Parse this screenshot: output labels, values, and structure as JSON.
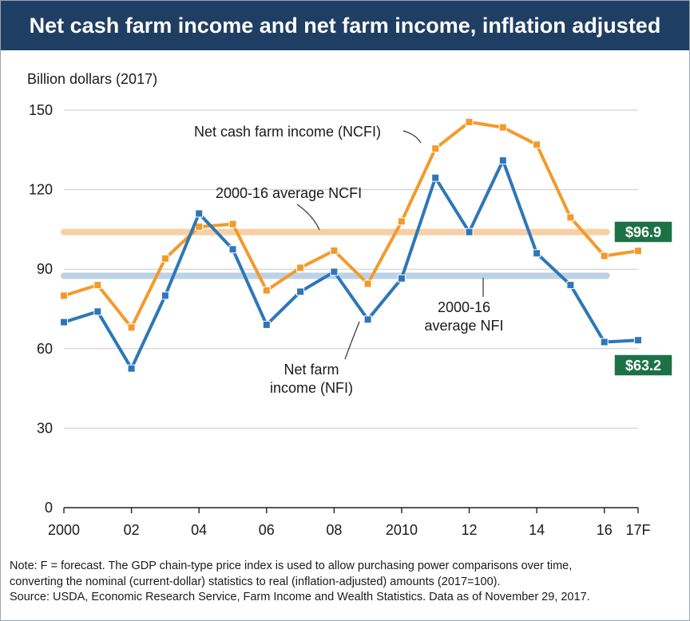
{
  "header": {
    "title": "Net cash farm income and net farm income, inflation adjusted"
  },
  "notes": {
    "line1": "Note: F = forecast. The GDP chain-type price index is used to allow purchasing power comparisons over time,",
    "line2": "converting the nominal (current-dollar) statistics to real (inflation-adjusted) amounts (2017=100).",
    "line3": "Source: USDA, Economic Research Service, Farm Income and Wealth Statistics. Data as of November 29, 2017."
  },
  "colors": {
    "title_bg": "#1f3e63",
    "ncfi": "#f39a2b",
    "nfi": "#2d77b8",
    "ncfi_avg": "#f8cfa6",
    "nfi_avg": "#bcd3e6",
    "badge": "#1d7147"
  },
  "chart_data": {
    "type": "line",
    "ylabel": "Billion dollars (2017)",
    "ylim": [
      0,
      150
    ],
    "yticks": [
      0,
      30,
      60,
      90,
      120,
      150
    ],
    "x": [
      2000,
      2001,
      2002,
      2003,
      2004,
      2005,
      2006,
      2007,
      2008,
      2009,
      2010,
      2011,
      2012,
      2013,
      2014,
      2015,
      2016,
      2017
    ],
    "xlim": [
      2000,
      2017
    ],
    "xticks": [
      {
        "x": 2000,
        "label": "2000"
      },
      {
        "x": 2002,
        "label": "02"
      },
      {
        "x": 2004,
        "label": "04"
      },
      {
        "x": 2006,
        "label": "06"
      },
      {
        "x": 2008,
        "label": "08"
      },
      {
        "x": 2010,
        "label": "2010"
      },
      {
        "x": 2012,
        "label": "12"
      },
      {
        "x": 2014,
        "label": "14"
      },
      {
        "x": 2016,
        "label": "16"
      },
      {
        "x": 2017,
        "label": "17F"
      }
    ],
    "grid": true,
    "series": [
      {
        "name": "Net cash farm income (NCFI)",
        "key": "ncfi",
        "values": [
          80,
          84,
          68,
          94,
          106,
          107,
          82,
          90.5,
          97,
          84.5,
          108,
          135.5,
          145.5,
          143.5,
          137,
          109.5,
          95,
          96.9
        ]
      },
      {
        "name": "Net farm income (NFI)",
        "key": "nfi",
        "values": [
          70,
          74,
          52.5,
          80,
          111,
          97.5,
          69,
          81.5,
          89,
          71,
          86.5,
          124.5,
          104,
          131,
          96,
          84,
          62.5,
          63.2
        ]
      }
    ],
    "reference_lines": [
      {
        "label": "2000-16 average NCFI",
        "key": "ncfi_avg",
        "value": 104,
        "x_range": [
          2000,
          2016
        ]
      },
      {
        "label_line1": "2000-16",
        "label_line2": "average NFI",
        "key": "nfi_avg",
        "value": 87.5,
        "x_range": [
          2000,
          2016
        ]
      }
    ],
    "annotations": {
      "ncfi_series_label": "Net cash farm income (NCFI)",
      "nfi_series_label_line1": "Net farm",
      "nfi_series_label_line2": "income (NFI)",
      "ncfi_avg_label": "2000-16 average NCFI",
      "nfi_avg_label_line1": "2000-16",
      "nfi_avg_label_line2": "average NFI",
      "ncfi_end_value": "$96.9",
      "nfi_end_value": "$63.2"
    }
  }
}
